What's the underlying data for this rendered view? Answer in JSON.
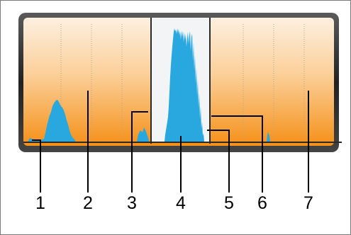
{
  "figure": {
    "labels": [
      "1",
      "2",
      "3",
      "4",
      "5",
      "6",
      "7"
    ]
  },
  "colors": {
    "panel_top": "#fdebd4",
    "panel_bottom": "#f7941d",
    "histogram_fill": "#29a8df",
    "selection_fill": "#eef2f6",
    "frame_dark": "#2a2a2a",
    "callout_line": "#000000",
    "border": "#7a7a7a"
  }
}
